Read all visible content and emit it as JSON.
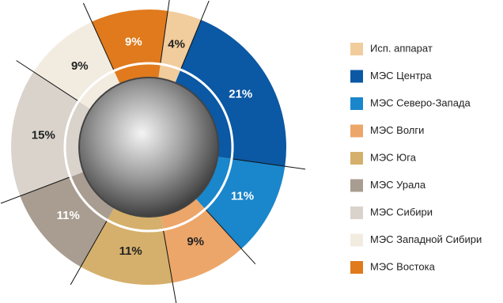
{
  "chart_data": {
    "type": "donut",
    "categories": [
      "Исп. аппарат",
      "МЭС Центра",
      "МЭС Северо-Запада",
      "МЭС Волги",
      "МЭС Юга",
      "МЭС Урала",
      "МЭС Сибири",
      "МЭС Западной Сибири",
      "МЭС Востока"
    ],
    "values": [
      4,
      21,
      11,
      9,
      11,
      11,
      15,
      9,
      9
    ],
    "value_labels": [
      "4%",
      "21%",
      "11%",
      "9%",
      "11%",
      "11%",
      "15%",
      "9%",
      "9%"
    ],
    "colors": [
      "#f1cc9c",
      "#0b58a4",
      "#1a86cb",
      "#eca66a",
      "#d5b06c",
      "#a89d90",
      "#d9d3cc",
      "#f2ece0",
      "#e07a1c"
    ],
    "legend": "right"
  }
}
